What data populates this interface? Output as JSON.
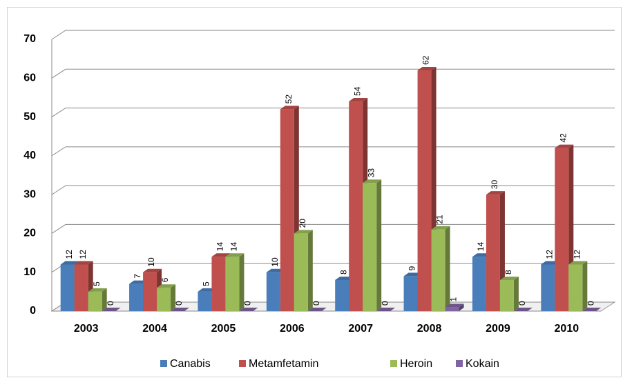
{
  "chart_data": {
    "type": "bar3d",
    "categories": [
      "2003",
      "2004",
      "2005",
      "2006",
      "2007",
      "2008",
      "2009",
      "2010"
    ],
    "series": [
      {
        "name": "Canabis",
        "color": "#4a7ebb",
        "values": [
          12,
          7,
          5,
          10,
          8,
          9,
          14,
          12
        ]
      },
      {
        "name": "Metamfetamin",
        "color": "#c0504d",
        "values": [
          12,
          10,
          14,
          52,
          54,
          62,
          30,
          42
        ]
      },
      {
        "name": "Heroin",
        "color": "#9bbb59",
        "values": [
          5,
          6,
          14,
          20,
          33,
          21,
          8,
          12
        ]
      },
      {
        "name": "Kokain",
        "color": "#8064a2",
        "values": [
          0,
          0,
          0,
          0,
          0,
          1,
          0,
          0
        ]
      }
    ],
    "ylim": [
      0,
      70
    ],
    "yticks": [
      0,
      10,
      20,
      30,
      40,
      50,
      60,
      70
    ],
    "grid": true,
    "legend": "bottom"
  }
}
